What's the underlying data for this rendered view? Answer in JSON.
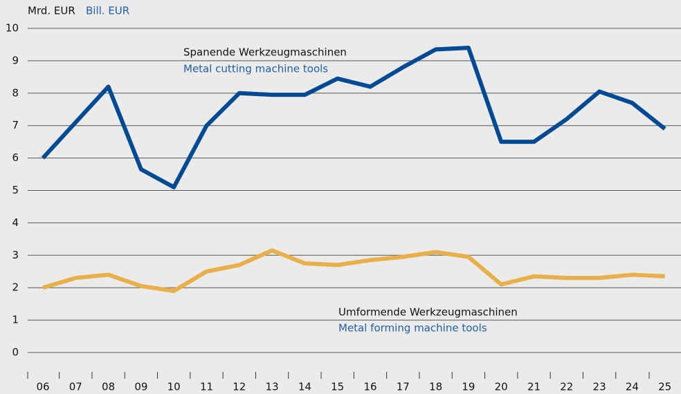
{
  "chart_data": {
    "type": "line",
    "ylabel": "Mrd. EUR",
    "ylabel_en": "Bill. EUR",
    "categories": [
      "06",
      "07",
      "08",
      "09",
      "10",
      "11",
      "12",
      "13",
      "14",
      "15",
      "16",
      "17",
      "18",
      "19",
      "20",
      "21",
      "22",
      "23",
      "24",
      "25"
    ],
    "series": [
      {
        "name": "Spanende Werkzeugmaschinen",
        "name_en": "Metal cutting machine tools",
        "color": "#004a93",
        "values": [
          6.0,
          7.1,
          8.2,
          5.65,
          5.1,
          7.0,
          8.0,
          7.95,
          7.95,
          8.45,
          8.2,
          8.8,
          9.35,
          9.4,
          6.5,
          6.5,
          7.2,
          8.05,
          7.7,
          6.9
        ]
      },
      {
        "name": "Umformende Werkzeugmaschinen",
        "name_en": "Metal forming machine tools",
        "color": "#e8b04a",
        "values": [
          2.0,
          2.3,
          2.4,
          2.05,
          1.9,
          2.5,
          2.7,
          3.15,
          2.75,
          2.7,
          2.85,
          2.95,
          3.1,
          2.95,
          2.1,
          2.35,
          2.3,
          2.3,
          2.4,
          2.35
        ]
      }
    ],
    "ylim": [
      0,
      10
    ],
    "yticks": [
      0,
      1,
      2,
      3,
      4,
      5,
      6,
      7,
      8,
      9,
      10
    ],
    "grid": true
  }
}
